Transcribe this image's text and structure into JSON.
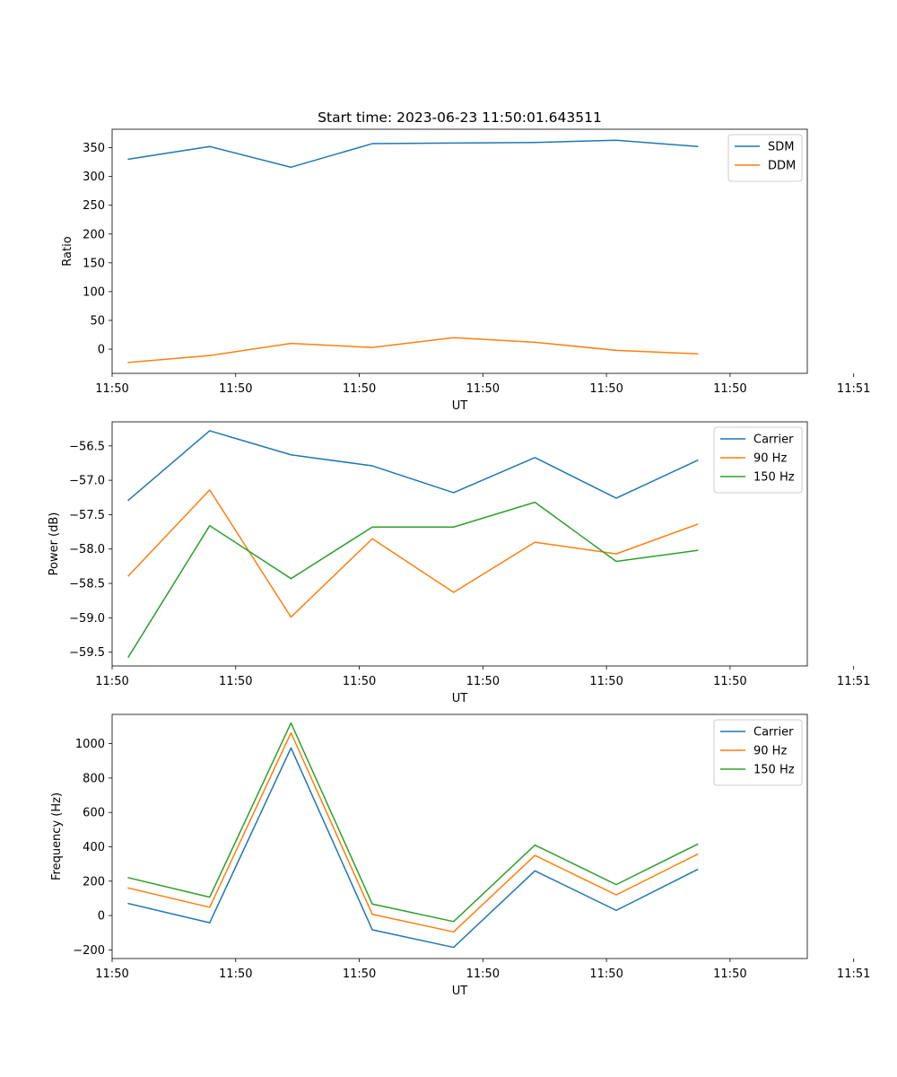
{
  "figure": {
    "title": "Start time: 2023-06-23 11:50:01.643511"
  },
  "chart_data": [
    {
      "type": "line",
      "xlabel": "UT",
      "ylabel": "Ratio",
      "x": [
        1,
        2,
        3,
        4,
        5,
        6,
        7,
        8
      ],
      "xlim": [
        0.8,
        9.35
      ],
      "x_ticks": [
        {
          "x": 0.8,
          "label": "11:50"
        },
        {
          "x": 2.32,
          "label": "11:50"
        },
        {
          "x": 3.84,
          "label": "11:50"
        },
        {
          "x": 5.36,
          "label": "11:50"
        },
        {
          "x": 6.88,
          "label": "11:50"
        },
        {
          "x": 8.4,
          "label": "11:50"
        },
        {
          "x": 9.92,
          "label": "11:51"
        }
      ],
      "ylim": [
        -42,
        382
      ],
      "y_ticks": [
        0,
        50,
        100,
        150,
        200,
        250,
        300,
        350
      ],
      "legend_position": "upper-right",
      "series": [
        {
          "name": "SDM",
          "color": "#1f77b4",
          "values": [
            330,
            352,
            316,
            357,
            358,
            359,
            363,
            352
          ]
        },
        {
          "name": "DDM",
          "color": "#ff7f0e",
          "values": [
            -23,
            -11,
            10,
            3,
            20,
            12,
            -2,
            -8
          ]
        }
      ]
    },
    {
      "type": "line",
      "xlabel": "UT",
      "ylabel": "Power (dB)",
      "x": [
        1,
        2,
        3,
        4,
        5,
        6,
        7,
        8
      ],
      "xlim": [
        0.8,
        9.35
      ],
      "x_ticks": [
        {
          "x": 0.8,
          "label": "11:50"
        },
        {
          "x": 2.32,
          "label": "11:50"
        },
        {
          "x": 3.84,
          "label": "11:50"
        },
        {
          "x": 5.36,
          "label": "11:50"
        },
        {
          "x": 6.88,
          "label": "11:50"
        },
        {
          "x": 8.4,
          "label": "11:50"
        },
        {
          "x": 9.92,
          "label": "11:51"
        }
      ],
      "ylim": [
        -59.7,
        -56.15
      ],
      "y_ticks": [
        {
          "v": -56.5,
          "label": "−56.5"
        },
        {
          "v": -57.0,
          "label": "−57.0"
        },
        {
          "v": -57.5,
          "label": "−57.5"
        },
        {
          "v": -58.0,
          "label": "−58.0"
        },
        {
          "v": -58.5,
          "label": "−58.5"
        },
        {
          "v": -59.0,
          "label": "−59.0"
        },
        {
          "v": -59.5,
          "label": "−59.5"
        }
      ],
      "legend_position": "upper-right",
      "series": [
        {
          "name": "Carrier",
          "color": "#1f77b4",
          "values": [
            -57.29,
            -56.28,
            -56.63,
            -56.79,
            -57.18,
            -56.67,
            -57.26,
            -56.71
          ]
        },
        {
          "name": "90 Hz",
          "color": "#ff7f0e",
          "values": [
            -58.39,
            -57.14,
            -58.99,
            -57.85,
            -58.63,
            -57.9,
            -58.07,
            -57.64
          ]
        },
        {
          "name": "150 Hz",
          "color": "#2ca02c",
          "values": [
            -59.57,
            -57.66,
            -58.43,
            -57.68,
            -57.68,
            -57.32,
            -58.18,
            -58.02
          ]
        }
      ]
    },
    {
      "type": "line",
      "xlabel": "UT",
      "ylabel": "Frequency (Hz)",
      "x": [
        1,
        2,
        3,
        4,
        5,
        6,
        7,
        8
      ],
      "xlim": [
        0.8,
        9.35
      ],
      "x_ticks": [
        {
          "x": 0.8,
          "label": "11:50"
        },
        {
          "x": 2.32,
          "label": "11:50"
        },
        {
          "x": 3.84,
          "label": "11:50"
        },
        {
          "x": 5.36,
          "label": "11:50"
        },
        {
          "x": 6.88,
          "label": "11:50"
        },
        {
          "x": 8.4,
          "label": "11:50"
        },
        {
          "x": 9.92,
          "label": "11:51"
        }
      ],
      "ylim": [
        -250,
        1170
      ],
      "y_ticks": [
        {
          "v": -200,
          "label": "−200"
        },
        {
          "v": 0,
          "label": "0"
        },
        {
          "v": 200,
          "label": "200"
        },
        {
          "v": 400,
          "label": "400"
        },
        {
          "v": 600,
          "label": "600"
        },
        {
          "v": 800,
          "label": "800"
        },
        {
          "v": 1000,
          "label": "1000"
        }
      ],
      "legend_position": "upper-right",
      "series": [
        {
          "name": "Carrier",
          "color": "#1f77b4",
          "values": [
            70,
            -42,
            975,
            -83,
            -185,
            260,
            30,
            268
          ]
        },
        {
          "name": "90 Hz",
          "color": "#ff7f0e",
          "values": [
            160,
            48,
            1063,
            7,
            -95,
            350,
            120,
            357
          ]
        },
        {
          "name": "150 Hz",
          "color": "#2ca02c",
          "values": [
            220,
            107,
            1120,
            67,
            -35,
            410,
            180,
            415
          ]
        }
      ]
    }
  ]
}
